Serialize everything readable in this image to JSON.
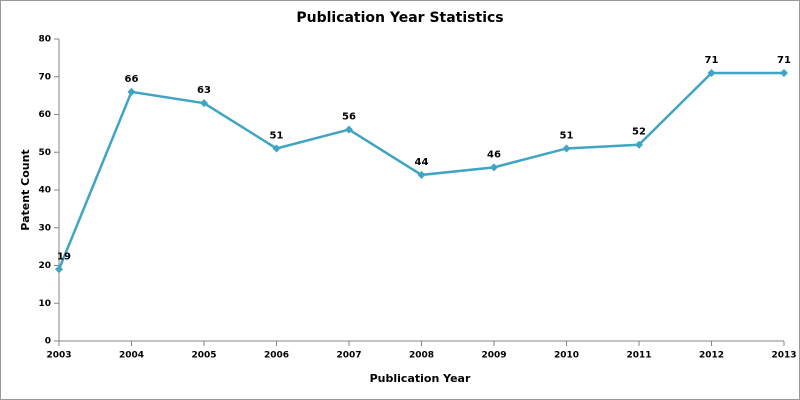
{
  "chart_data": {
    "type": "line",
    "title": "Publication Year Statistics",
    "x_label": "Publication Year",
    "y_label": "Patent Count",
    "x": [
      2003,
      2004,
      2005,
      2006,
      2007,
      2008,
      2009,
      2010,
      2011,
      2012,
      2013
    ],
    "series": [
      {
        "name": "Patent Count",
        "color": "#3fa5c2",
        "values": [
          19,
          66,
          63,
          51,
          56,
          44,
          46,
          51,
          52,
          71,
          71
        ]
      }
    ],
    "xlim": [
      2003,
      2013
    ],
    "xticks": [
      2003,
      2004,
      2005,
      2006,
      2007,
      2008,
      2009,
      2010,
      2011,
      2012,
      2013
    ],
    "ylim": [
      0,
      80
    ],
    "yticks": [
      0,
      10,
      20,
      30,
      40,
      50,
      60,
      70,
      80
    ],
    "grid": false
  }
}
